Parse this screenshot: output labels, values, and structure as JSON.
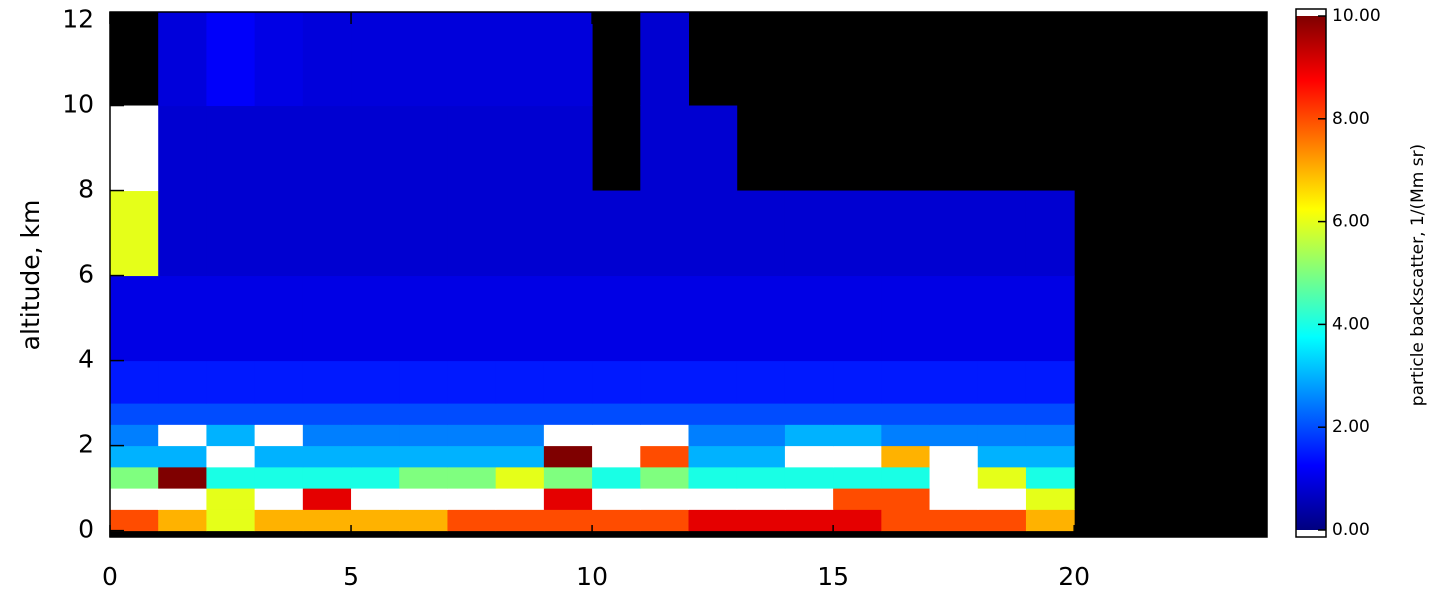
{
  "chart_data": {
    "type": "heatmap",
    "y_label": "altitude, km",
    "colorbar_label": "particle backscatter, 1/(Mm sr)",
    "x": [
      0,
      1,
      2,
      3,
      4,
      5,
      6,
      7,
      8,
      9,
      10,
      11,
      12,
      13,
      14,
      15,
      16,
      17,
      18,
      19,
      20,
      21,
      22,
      23,
      24
    ],
    "y": [
      0,
      0.5,
      1,
      1.5,
      2,
      2.5,
      3,
      4,
      6,
      8,
      10,
      12.2
    ],
    "xlim": [
      0,
      24
    ],
    "ylim": [
      -0.15,
      12.2
    ],
    "xticks": [
      0,
      5,
      10,
      15,
      20
    ],
    "yticks": [
      0,
      2,
      4,
      6,
      8,
      10,
      12
    ],
    "clim": [
      0,
      10
    ],
    "cticks": [
      {
        "value": 0,
        "label": "0.00"
      },
      {
        "value": 2,
        "label": "2.00"
      },
      {
        "value": 4,
        "label": "4.00"
      },
      {
        "value": 6,
        "label": "6.00"
      },
      {
        "value": 8,
        "label": "8.00"
      },
      {
        "value": 10,
        "label": "10.00"
      }
    ],
    "colorscale": [
      "#00007f",
      "#0000ff",
      "#007fff",
      "#00ffff",
      "#7fff7f",
      "#ffff00",
      "#ff7f00",
      "#ff0000",
      "#7f0000"
    ],
    "over_color": "#ffffff",
    "null_color": "#000000",
    "values": [
      [
        8,
        7,
        6,
        7,
        7,
        7,
        7,
        8,
        8,
        8,
        8,
        8,
        9,
        9,
        9,
        9,
        8,
        8,
        8,
        7,
        null,
        null,
        null,
        null
      ],
      [
        11,
        11,
        6,
        11,
        9,
        11,
        11,
        11,
        11,
        9,
        11,
        11,
        11,
        11,
        11,
        8,
        8,
        11,
        11,
        6,
        null,
        null,
        null,
        null
      ],
      [
        5,
        10,
        4,
        4,
        4,
        4,
        5,
        5,
        6,
        5,
        4,
        5,
        4,
        4,
        4,
        4,
        4,
        11,
        6,
        4,
        null,
        null,
        null,
        null
      ],
      [
        3,
        3,
        11,
        3,
        3,
        3,
        3,
        3,
        3,
        10,
        11,
        8,
        3,
        3,
        11,
        12,
        7,
        11,
        3,
        3,
        null,
        null,
        null,
        null
      ],
      [
        2.5,
        11,
        3,
        11,
        2.5,
        2.5,
        2.5,
        2.5,
        2.5,
        11,
        11,
        11,
        2.5,
        2.5,
        3,
        3,
        2.5,
        2.5,
        2.5,
        2.5,
        null,
        null,
        null,
        null
      ],
      [
        2,
        2,
        2,
        2,
        2,
        2,
        2,
        2,
        2,
        2,
        2,
        2,
        2,
        2,
        2,
        2,
        2,
        2,
        2,
        2,
        null,
        null,
        null,
        null
      ],
      [
        1.5,
        1.5,
        1.5,
        1.5,
        1.5,
        1.5,
        1.5,
        1.5,
        1.5,
        1.5,
        1.5,
        1.5,
        1.5,
        1.5,
        1.5,
        1.5,
        1.5,
        1.5,
        1.5,
        1.5,
        null,
        null,
        null,
        null
      ],
      [
        1,
        1,
        1,
        1,
        1,
        1,
        1,
        1,
        1,
        1,
        1,
        1,
        1,
        1,
        1,
        1,
        1,
        1,
        1,
        1,
        null,
        null,
        null,
        null
      ],
      [
        6,
        0.8,
        0.8,
        0.8,
        0.8,
        0.8,
        0.8,
        0.8,
        0.8,
        0.8,
        0.8,
        0.8,
        0.8,
        0.8,
        0.8,
        0.8,
        0.8,
        0.8,
        0.8,
        0.8,
        null,
        null,
        null,
        null
      ],
      [
        11,
        0.8,
        0.8,
        0.8,
        0.8,
        0.8,
        0.8,
        0.8,
        0.8,
        0.8,
        null,
        0.8,
        0.8,
        null,
        null,
        null,
        null,
        null,
        null,
        null,
        null,
        null,
        null,
        null
      ],
      [
        null,
        0.9,
        1.2,
        1,
        0.9,
        0.9,
        0.9,
        0.9,
        0.9,
        0.9,
        null,
        0.8,
        null,
        null,
        null,
        null,
        null,
        null,
        null,
        null,
        null,
        null,
        null,
        null
      ]
    ]
  }
}
